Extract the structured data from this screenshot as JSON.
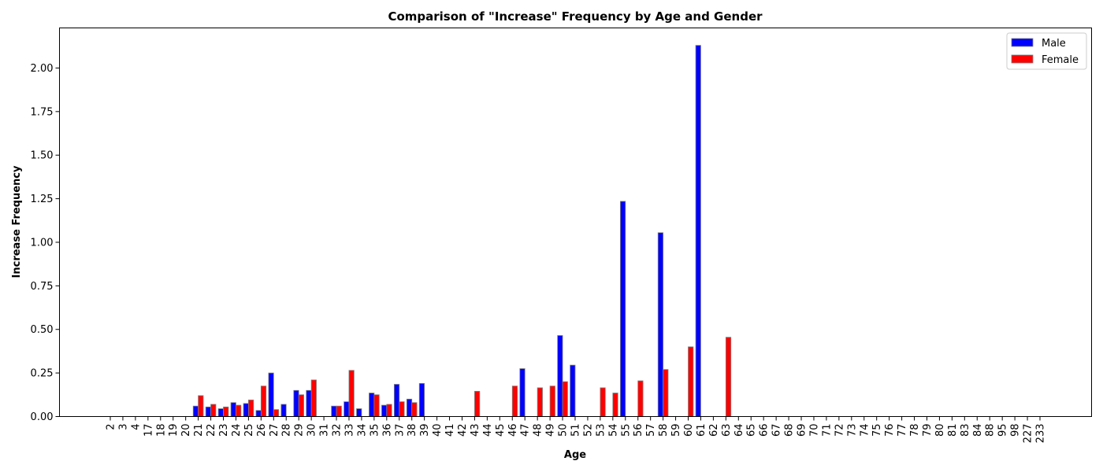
{
  "chart_data": {
    "type": "bar",
    "title": "Comparison of \"Increase\" Frequency by Age and Gender",
    "xlabel": "Age",
    "ylabel": "Increase Frequency",
    "ylim": [
      0,
      2.23
    ],
    "yticks": [
      "0.00",
      "0.25",
      "0.50",
      "0.75",
      "1.00",
      "1.25",
      "1.50",
      "1.75",
      "2.00"
    ],
    "grid": false,
    "legend_position": "top-right",
    "categories": [
      "2",
      "3",
      "4",
      "17",
      "18",
      "19",
      "20",
      "21",
      "22",
      "23",
      "24",
      "25",
      "26",
      "27",
      "28",
      "29",
      "30",
      "31",
      "32",
      "33",
      "34",
      "35",
      "36",
      "37",
      "38",
      "39",
      "40",
      "41",
      "42",
      "43",
      "44",
      "45",
      "46",
      "47",
      "48",
      "49",
      "50",
      "51",
      "52",
      "53",
      "54",
      "55",
      "56",
      "57",
      "58",
      "59",
      "60",
      "61",
      "62",
      "63",
      "64",
      "65",
      "66",
      "67",
      "68",
      "69",
      "70",
      "71",
      "72",
      "73",
      "74",
      "75",
      "76",
      "77",
      "78",
      "79",
      "80",
      "81",
      "83",
      "84",
      "88",
      "95",
      "98",
      "227",
      "233"
    ],
    "series": [
      {
        "name": "Male",
        "color": "#0000ff",
        "values": [
          0,
          0,
          0,
          0,
          0,
          0,
          0,
          0.06,
          0.055,
          0.045,
          0.08,
          0.075,
          0.035,
          0.25,
          0.07,
          0.15,
          0.15,
          0,
          0.06,
          0.085,
          0.045,
          0.135,
          0.065,
          0.185,
          0.1,
          0.19,
          0,
          0,
          0,
          0,
          0,
          0,
          0,
          0.275,
          0,
          0,
          0.465,
          0.295,
          0,
          0,
          0,
          1.235,
          0,
          0,
          1.055,
          0,
          0,
          2.13,
          0,
          0,
          0,
          0,
          0,
          0,
          0,
          0,
          0,
          0,
          0,
          0,
          0,
          0,
          0,
          0,
          0,
          0,
          0,
          0,
          0,
          0,
          0,
          0,
          0,
          0,
          0
        ]
      },
      {
        "name": "Female",
        "color": "#ff0000",
        "values": [
          0,
          0,
          0,
          0,
          0,
          0,
          0,
          0.12,
          0.07,
          0.055,
          0.065,
          0.095,
          0.175,
          0.04,
          0,
          0.125,
          0.21,
          0,
          0.06,
          0.265,
          0,
          0.125,
          0.07,
          0.085,
          0.08,
          0,
          0,
          0,
          0,
          0.145,
          0,
          0,
          0.175,
          0,
          0.165,
          0.175,
          0.2,
          0,
          0,
          0.165,
          0.135,
          0,
          0.205,
          0,
          0.27,
          0,
          0.4,
          0,
          0,
          0.455,
          0,
          0,
          0,
          0,
          0,
          0,
          0,
          0,
          0,
          0,
          0,
          0,
          0,
          0,
          0,
          0,
          0,
          0,
          0,
          0,
          0,
          0,
          0,
          0,
          0
        ]
      }
    ]
  }
}
